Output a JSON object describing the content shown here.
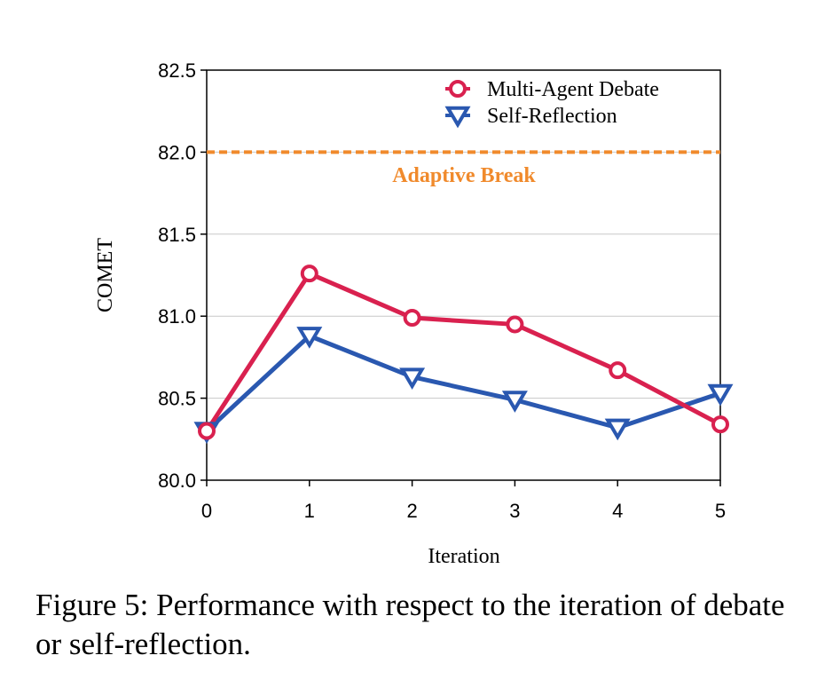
{
  "chart_data": {
    "type": "line",
    "xlabel": "Iteration",
    "ylabel": "COMET",
    "x": [
      0,
      1,
      2,
      3,
      4,
      5
    ],
    "xlim": [
      0,
      5
    ],
    "ylim": [
      80.0,
      82.5
    ],
    "yticks": [
      "80.0",
      "80.5",
      "81.0",
      "81.5",
      "82.0",
      "82.5"
    ],
    "xticks": [
      "0",
      "1",
      "2",
      "3",
      "4",
      "5"
    ],
    "grid": true,
    "legend_position": "top-right",
    "series": [
      {
        "name": "Multi-Agent Debate",
        "values": [
          80.3,
          81.26,
          80.99,
          80.95,
          80.67,
          80.34
        ],
        "color": "#d9214f",
        "marker": "circle"
      },
      {
        "name": "Self-Reflection",
        "values": [
          80.3,
          80.88,
          80.63,
          80.49,
          80.32,
          80.53
        ],
        "color": "#2a58b0",
        "marker": "triangle-down"
      }
    ],
    "reference_line": {
      "label": "Adaptive Break",
      "value": 82.0,
      "color": "#f08a2c",
      "style": "dashed"
    }
  },
  "caption": "Figure 5: Performance with respect to the iteration of debate or self-reflection."
}
